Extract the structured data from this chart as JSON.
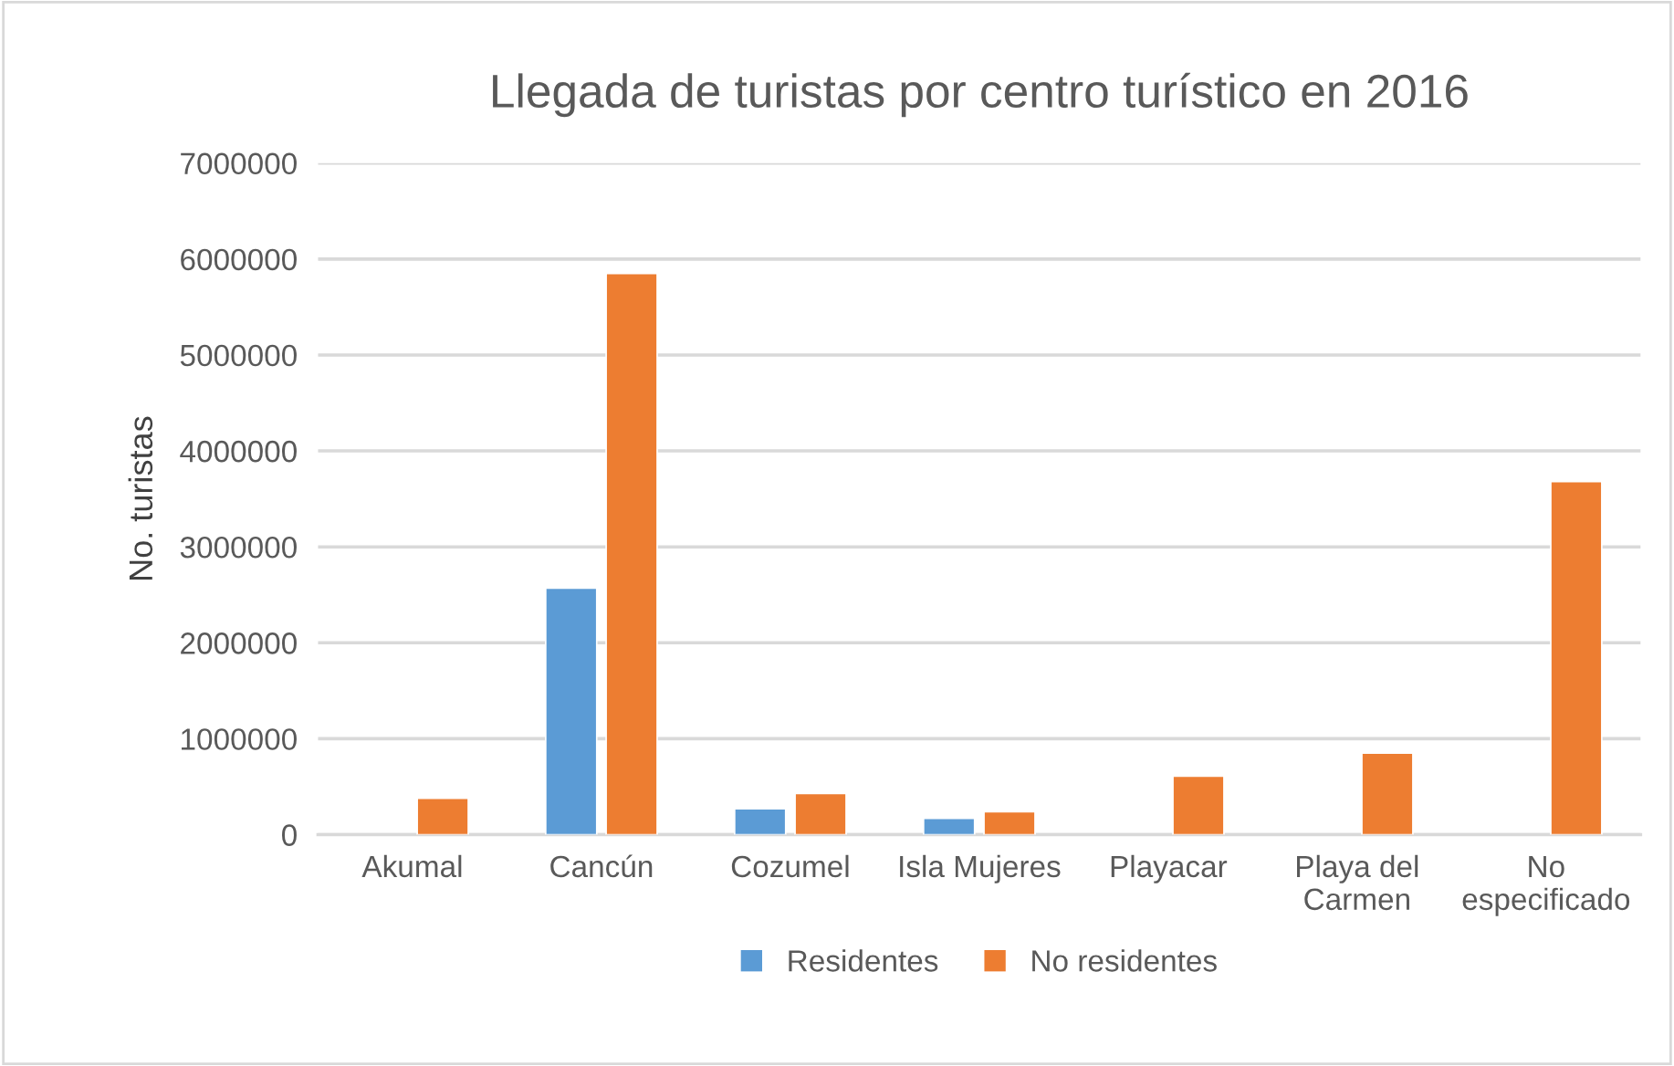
{
  "chart_data": {
    "type": "bar",
    "title": "Llegada de turistas por centro turístico en 2016",
    "ylabel": "No. turistas",
    "categories": [
      "Akumal",
      "Cancún",
      "Cozumel",
      "Isla Mujeres",
      "Playacar",
      "Playa del\nCarmen",
      "No\nespecificado"
    ],
    "series": [
      {
        "name": "Residentes",
        "color": "#5b9bd5",
        "values": [
          null,
          2570000,
          270000,
          170000,
          null,
          null,
          null
        ]
      },
      {
        "name": "No residentes",
        "color": "#ed7d31",
        "values": [
          380000,
          5850000,
          430000,
          240000,
          610000,
          850000,
          3680000
        ]
      }
    ],
    "ylim": [
      0,
      7000000
    ],
    "yticks": [
      0,
      1000000,
      2000000,
      3000000,
      4000000,
      5000000,
      6000000,
      7000000
    ],
    "grid": "y",
    "legend": "bottom"
  }
}
